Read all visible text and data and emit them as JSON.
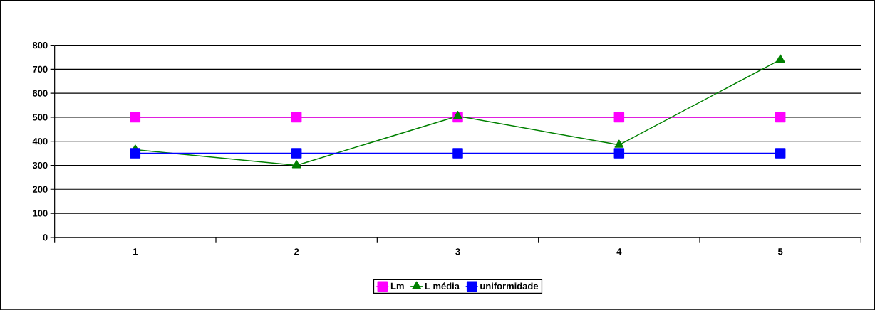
{
  "chart_data": {
    "type": "line",
    "categories": [
      "1",
      "2",
      "3",
      "4",
      "5"
    ],
    "series": [
      {
        "name": "Lm",
        "color": "#ff00ff",
        "marker": "square",
        "values": [
          500,
          500,
          500,
          500,
          500
        ]
      },
      {
        "name": "L média",
        "color": "#008000",
        "marker": "triangle",
        "values": [
          365,
          300,
          505,
          385,
          740
        ]
      },
      {
        "name": "uniformidade",
        "color": "#0000ff",
        "marker": "square",
        "values": [
          350,
          350,
          350,
          350,
          350
        ]
      }
    ],
    "ylim": [
      0,
      800
    ],
    "yticks": [
      0,
      100,
      200,
      300,
      400,
      500,
      600,
      700,
      800
    ],
    "grid": "y",
    "legend": "bottom"
  }
}
